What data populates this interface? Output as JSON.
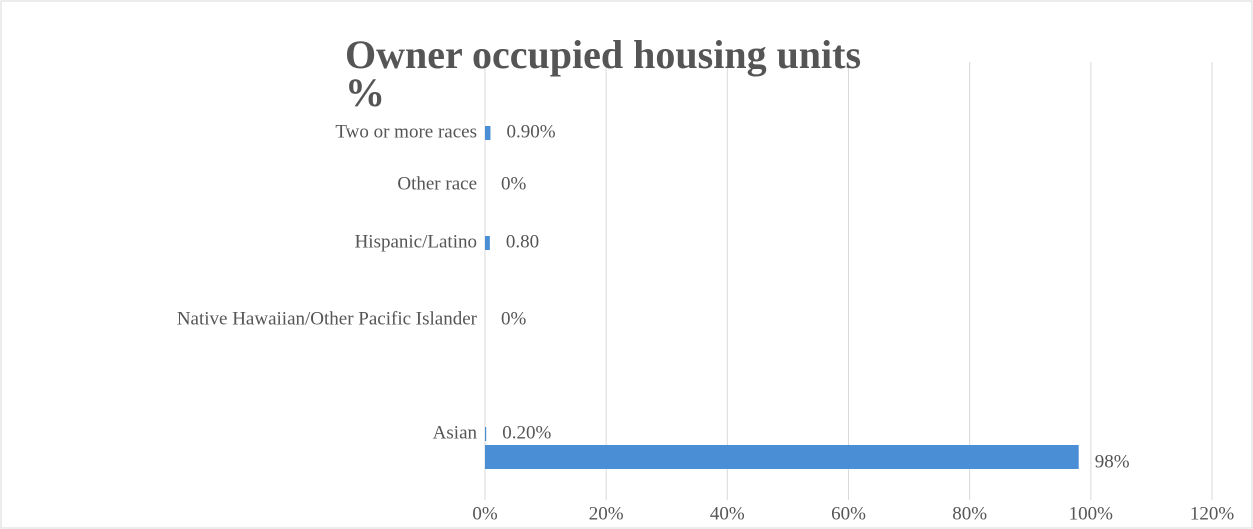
{
  "chart_data": {
    "type": "hbar",
    "title": "Owner occupied housing units %",
    "categories": [
      "Two or more races",
      "Other race",
      "Hispanic/Latino",
      "Native Hawaiian/Other Pacific Islander",
      "Asian",
      null
    ],
    "values": [
      0.9,
      0,
      0.8,
      0,
      0.2,
      98
    ],
    "value_labels": [
      "0.90%",
      "0%",
      "0.80",
      "0%",
      "0.20%",
      "98%"
    ],
    "color": "#4a8fd6",
    "xlim": [
      0,
      120
    ],
    "xticks": [
      {
        "value": 0,
        "label": "0%"
      },
      {
        "value": 20,
        "label": "20%"
      },
      {
        "value": 40,
        "label": "40%"
      },
      {
        "value": 60,
        "label": "60%"
      },
      {
        "value": 80,
        "label": "80%"
      },
      {
        "value": 100,
        "label": "100%"
      },
      {
        "value": 120,
        "label": "120%"
      }
    ],
    "grid": true
  }
}
